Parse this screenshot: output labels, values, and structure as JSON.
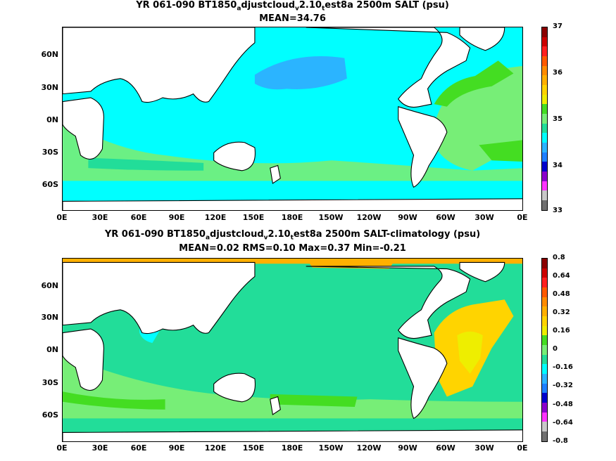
{
  "panels": [
    {
      "title_parts": [
        "YR 061-090 BT1850",
        "a",
        "djustcloud",
        "v",
        "2.10",
        "t",
        "est8a 2500m SALT (psu)"
      ],
      "stats": "MEAN=34.76",
      "colorbar": {
        "labels": [
          "37",
          "36",
          "35",
          "34",
          "33"
        ],
        "colors": [
          "#8b0000",
          "#cc0000",
          "#ff2020",
          "#ff5a00",
          "#ff8c00",
          "#ffb000",
          "#ffd400",
          "#eeee00",
          "#44dd22",
          "#77ee77",
          "#22dd99",
          "#00ffff",
          "#2bb4ff",
          "#1e7fff",
          "#0000cc",
          "#8b00cc",
          "#ff33ff",
          "#c8c8c8",
          "#707070"
        ]
      }
    },
    {
      "title_parts": [
        "YR 061-090 BT1850",
        "a",
        "djustcloud",
        "v",
        "2.10",
        "t",
        "est8a 2500m SALT-climatology (psu)"
      ],
      "stats": "MEAN=0.02   RMS=0.10   Max=0.37   Min=-0.21",
      "colorbar": {
        "labels": [
          "0.8",
          "0.64",
          "0.48",
          "0.32",
          "0.16",
          "0",
          "-0.16",
          "-0.32",
          "-0.48",
          "-0.64",
          "-0.8"
        ],
        "colors": [
          "#8b0000",
          "#cc0000",
          "#ff2020",
          "#ff5a00",
          "#ff8c00",
          "#ffb000",
          "#ffd400",
          "#eeee00",
          "#44dd22",
          "#77ee77",
          "#22dd99",
          "#00ffff",
          "#2bb4ff",
          "#1e7fff",
          "#0000cc",
          "#8b00cc",
          "#ff33ff",
          "#c8c8c8",
          "#707070"
        ]
      }
    }
  ],
  "axes": {
    "x_ticks": [
      "0E",
      "30E",
      "60E",
      "90E",
      "120E",
      "150E",
      "180E",
      "150W",
      "120W",
      "90W",
      "60W",
      "30W",
      "0E"
    ],
    "y_ticks": [
      "60N",
      "30N",
      "0N",
      "30S",
      "60S"
    ]
  },
  "field_colors": {
    "ocean_top": "#00ffff",
    "pacific_north_top": "#2bb4ff",
    "atlantic_top": "#77ee77",
    "atlantic_north_top": "#44dd22",
    "ocean_bottom": "#22dd99",
    "southern_bottom": "#77ee77",
    "atlantic_bottom": "#ffd400",
    "atlantic_core_bottom": "#eeee00",
    "arctic_bottom": "#ffb000",
    "land": "#ffffff"
  }
}
